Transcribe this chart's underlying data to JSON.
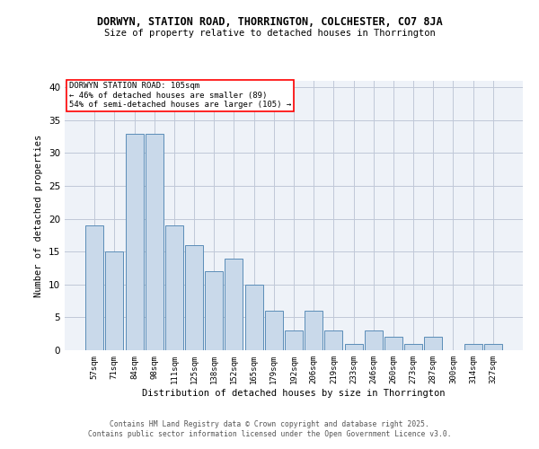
{
  "title": "DORWYN, STATION ROAD, THORRINGTON, COLCHESTER, CO7 8JA",
  "subtitle": "Size of property relative to detached houses in Thorrington",
  "xlabel": "Distribution of detached houses by size in Thorrington",
  "ylabel": "Number of detached properties",
  "categories": [
    "57sqm",
    "71sqm",
    "84sqm",
    "98sqm",
    "111sqm",
    "125sqm",
    "138sqm",
    "152sqm",
    "165sqm",
    "179sqm",
    "192sqm",
    "206sqm",
    "219sqm",
    "233sqm",
    "246sqm",
    "260sqm",
    "273sqm",
    "287sqm",
    "300sqm",
    "314sqm",
    "327sqm"
  ],
  "values": [
    19,
    15,
    33,
    33,
    19,
    16,
    12,
    14,
    10,
    6,
    3,
    6,
    3,
    1,
    3,
    2,
    1,
    2,
    0,
    1,
    1
  ],
  "bar_color": "#c9d9ea",
  "bar_edge_color": "#5b8db8",
  "grid_color": "#c0c8d8",
  "background_color": "#eef2f8",
  "annotation_box_text": "DORWYN STATION ROAD: 105sqm\n← 46% of detached houses are smaller (89)\n54% of semi-detached houses are larger (105) →",
  "ylim": [
    0,
    41
  ],
  "yticks": [
    0,
    5,
    10,
    15,
    20,
    25,
    30,
    35,
    40
  ],
  "footer_line1": "Contains HM Land Registry data © Crown copyright and database right 2025.",
  "footer_line2": "Contains public sector information licensed under the Open Government Licence v3.0."
}
